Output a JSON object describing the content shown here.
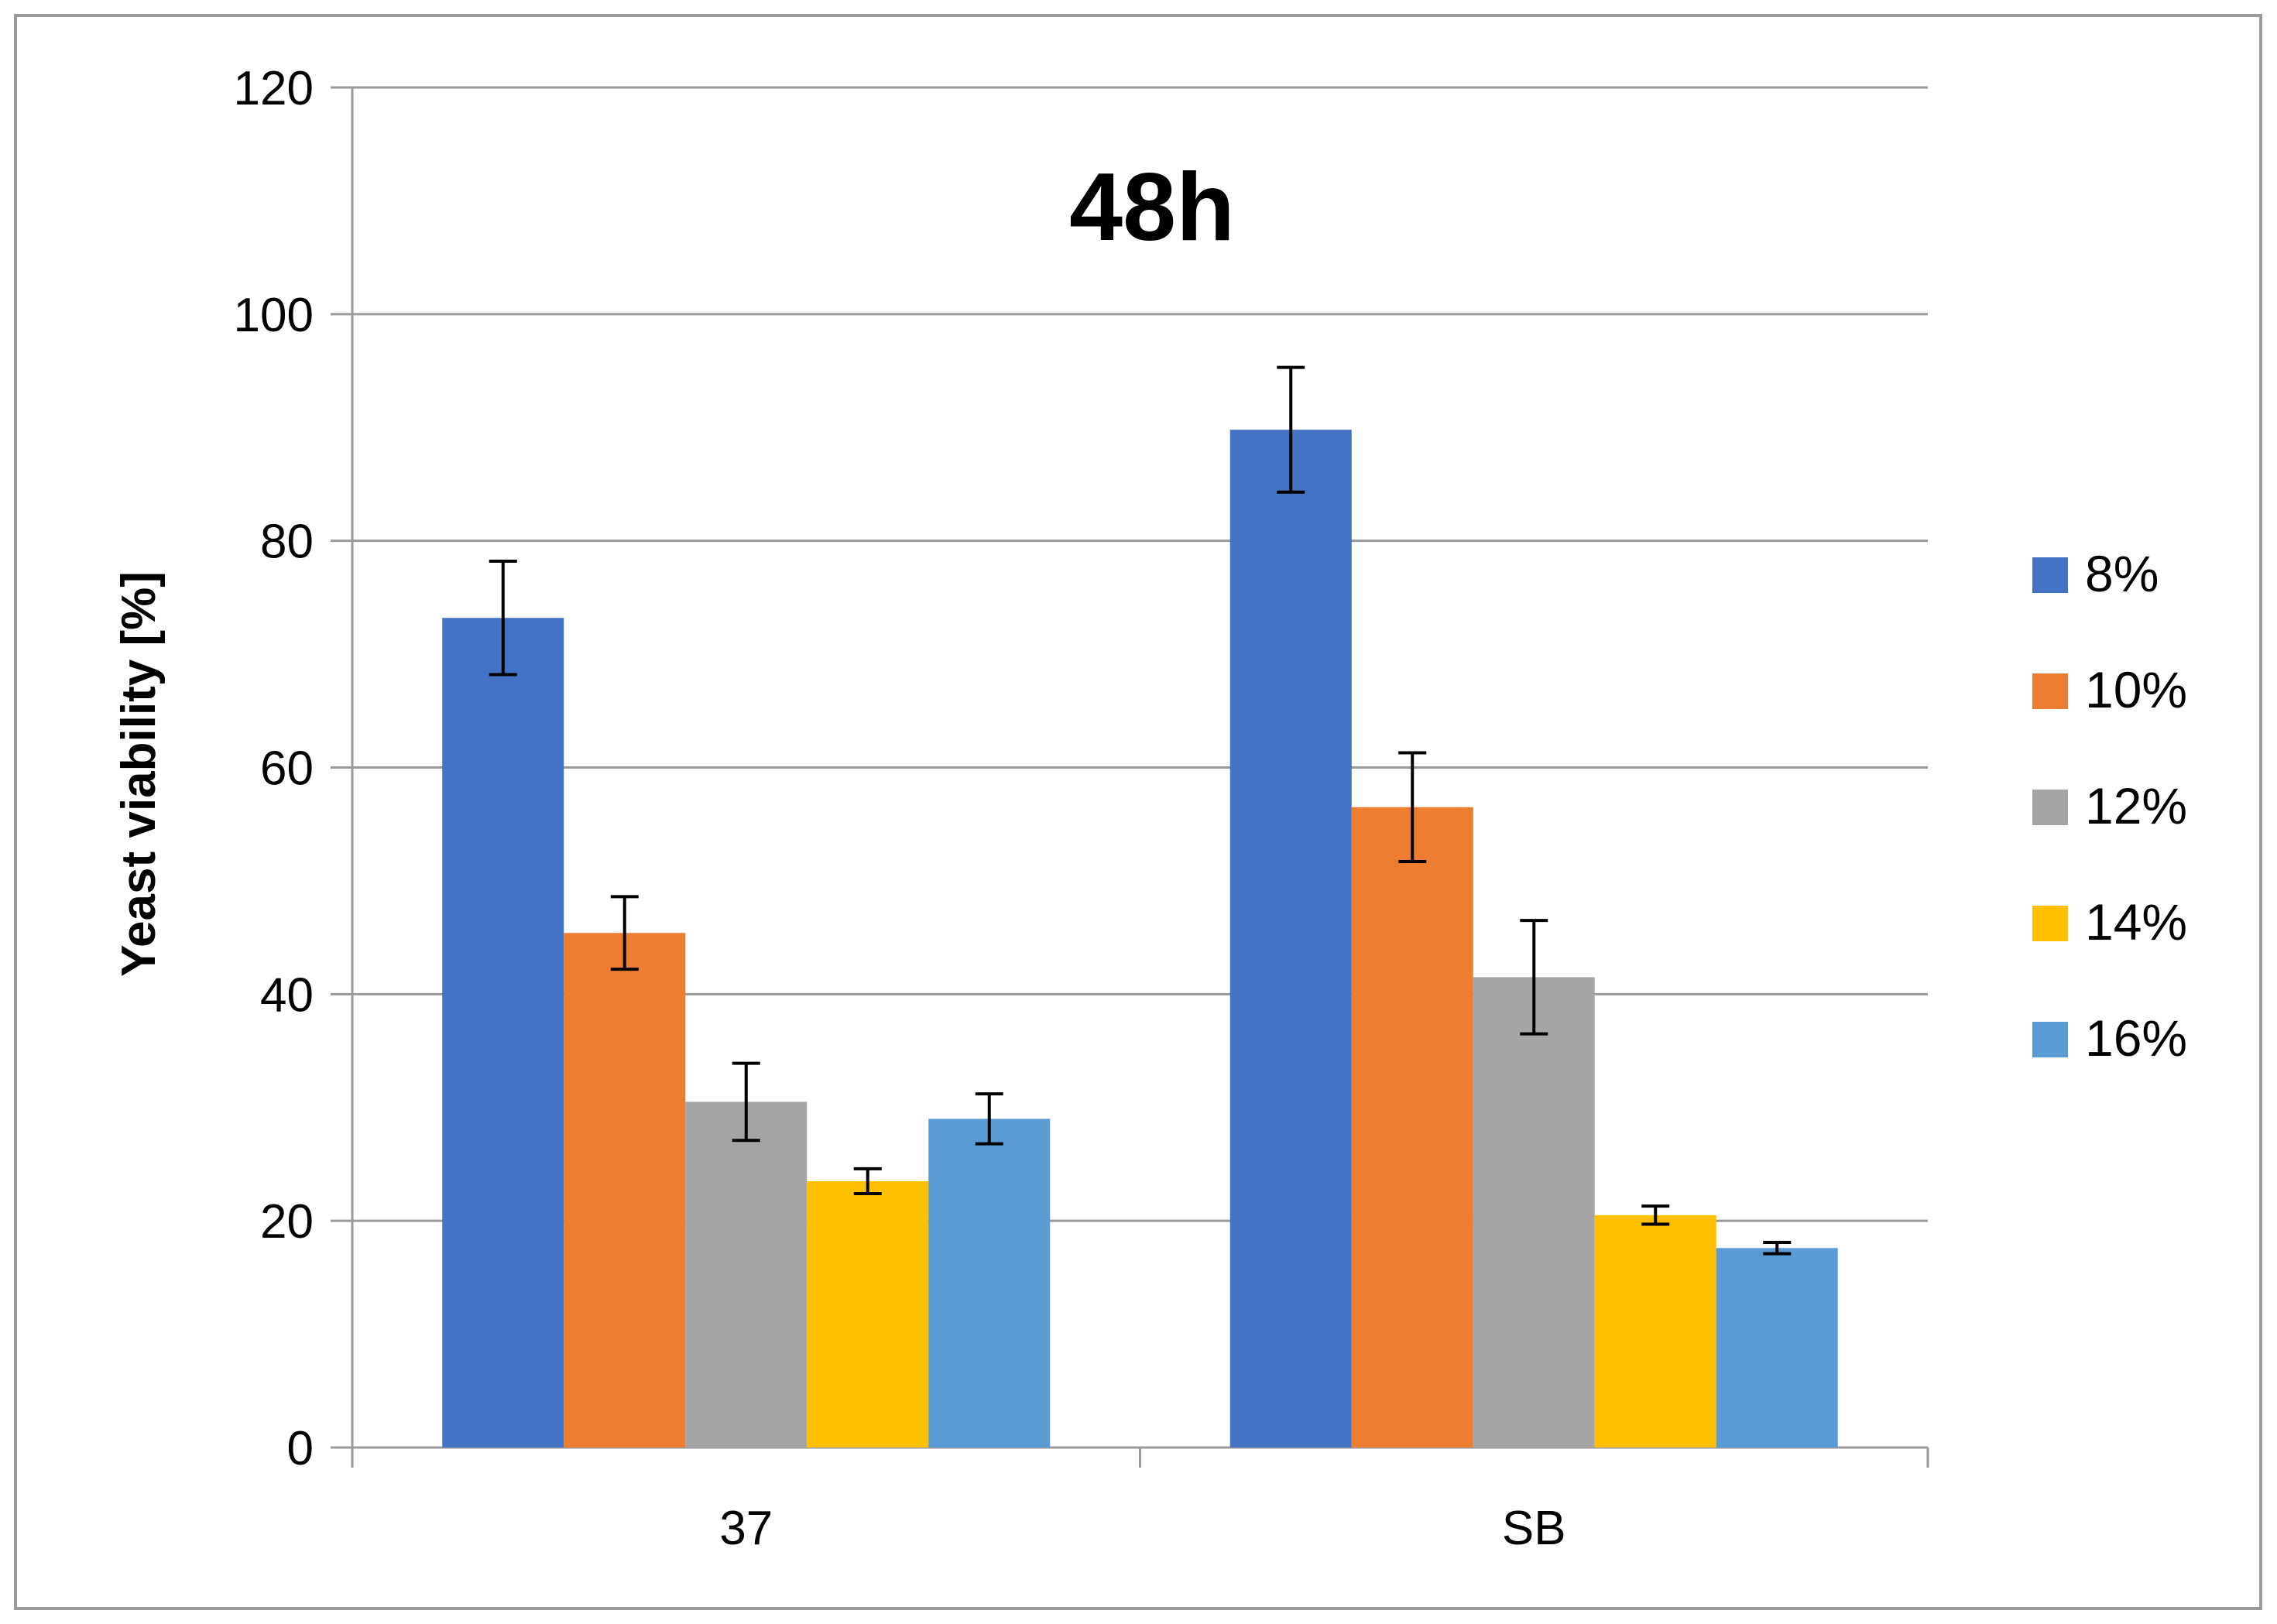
{
  "chart_data": {
    "type": "bar",
    "title": "48h",
    "xlabel": "",
    "ylabel": "Yeast viability [%]",
    "ylim": [
      0,
      120
    ],
    "yticks": [
      0,
      20,
      40,
      60,
      80,
      100,
      120
    ],
    "grid": true,
    "legend_position": "right",
    "categories": [
      "37",
      "SB"
    ],
    "series": [
      {
        "name": "8%",
        "color": "#4472C4",
        "values": [
          73.2,
          89.8
        ],
        "errors": [
          5.0,
          5.5
        ]
      },
      {
        "name": "10%",
        "color": "#ED7D31",
        "values": [
          45.4,
          56.5
        ],
        "errors": [
          3.2,
          4.8
        ]
      },
      {
        "name": "12%",
        "color": "#A5A5A5",
        "values": [
          30.5,
          41.5
        ],
        "errors": [
          3.4,
          5.0
        ]
      },
      {
        "name": "14%",
        "color": "#FFC000",
        "values": [
          23.5,
          20.5
        ],
        "errors": [
          1.1,
          0.8
        ]
      },
      {
        "name": "16%",
        "color": "#5B9BD5",
        "values": [
          29.0,
          17.6
        ],
        "errors": [
          2.2,
          0.5
        ]
      }
    ]
  }
}
